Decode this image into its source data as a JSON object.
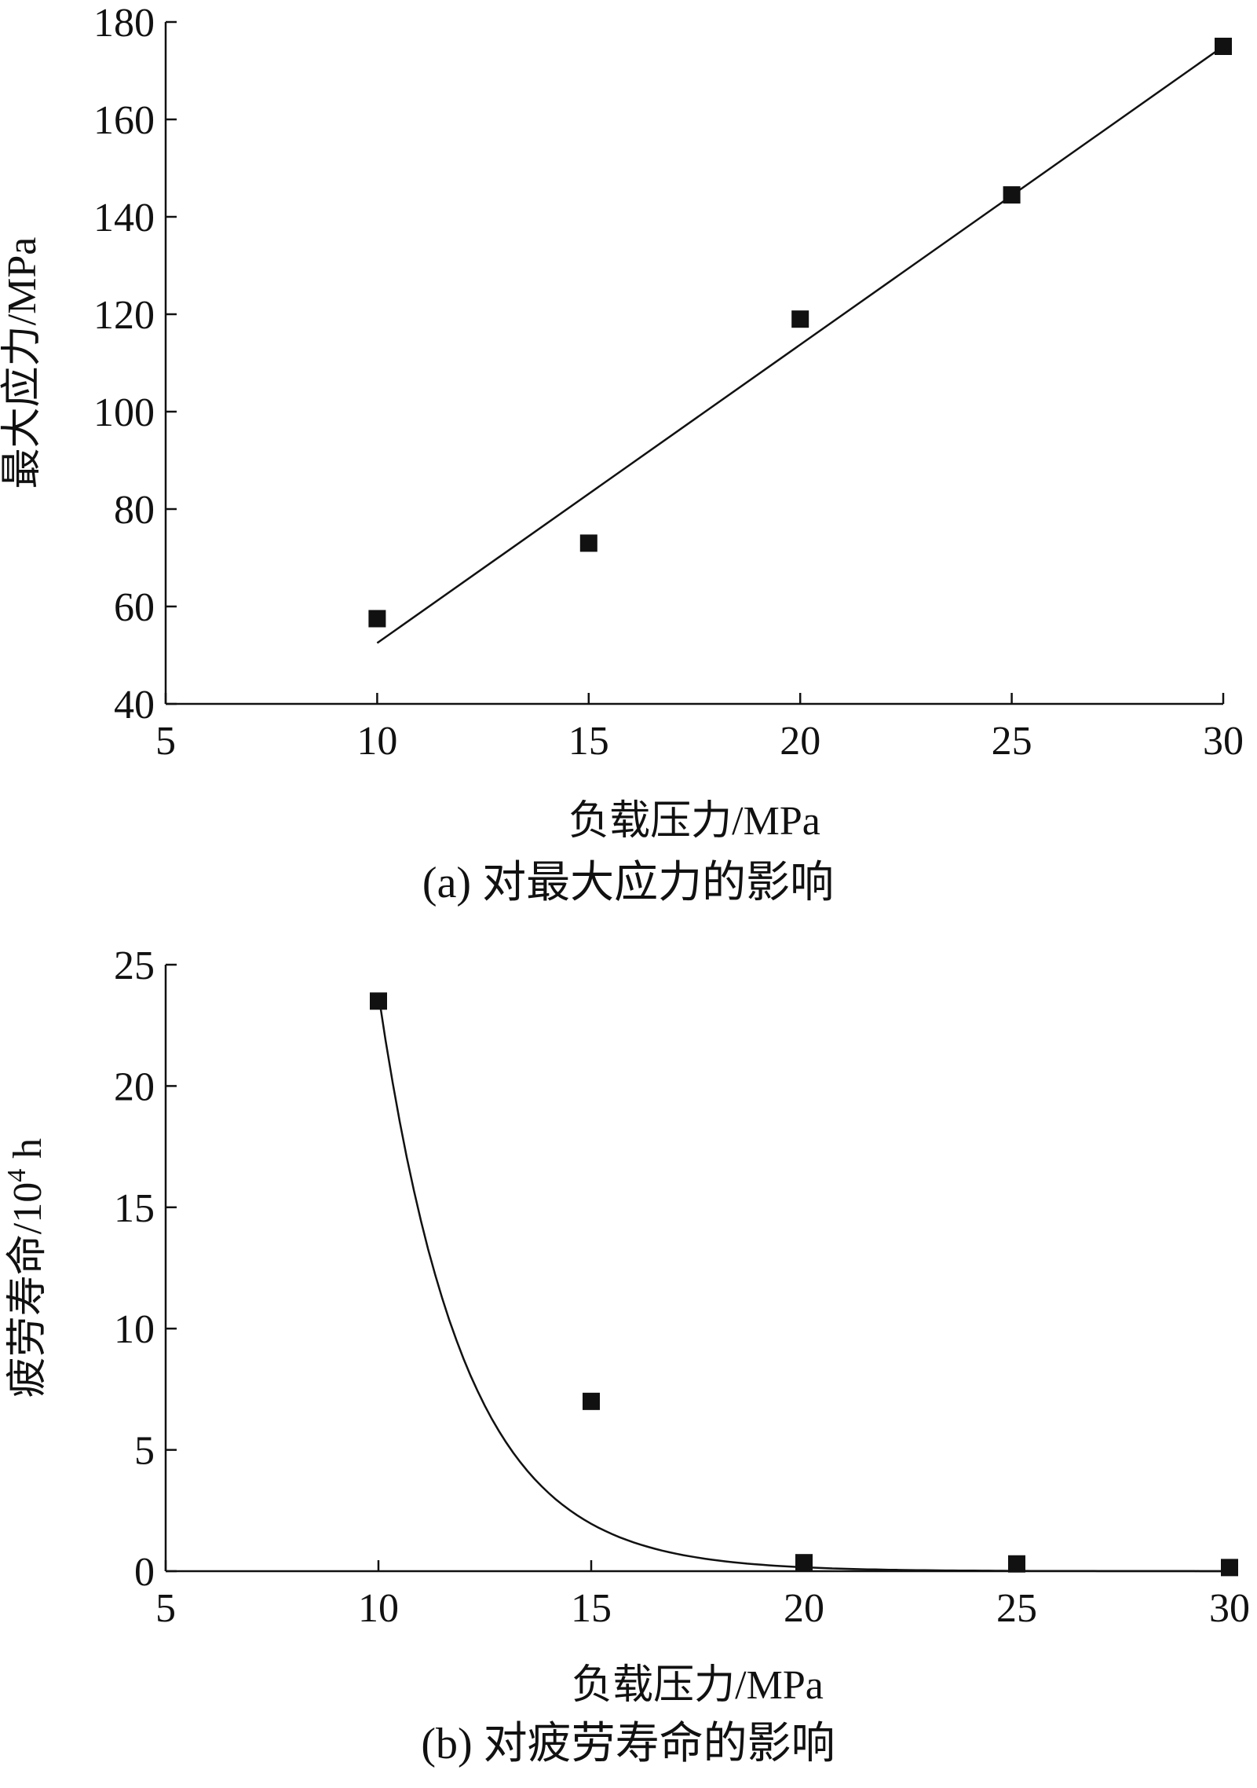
{
  "chart_data": [
    {
      "type": "scatter",
      "caption": "(a) 对最大应力的影响",
      "xlabel": "负载压力/MPa",
      "ylabel": "最大应力/MPa",
      "xlim": [
        5,
        30
      ],
      "ylim": [
        40,
        180
      ],
      "xticks": [
        5,
        10,
        15,
        20,
        25,
        30
      ],
      "yticks": [
        40,
        60,
        80,
        100,
        120,
        140,
        160,
        180
      ],
      "series": [
        {
          "x": [
            10,
            15,
            20,
            25,
            30
          ],
          "y": [
            57.5,
            73.0,
            119.0,
            144.5,
            175.0
          ]
        }
      ],
      "fit": {
        "kind": "linear",
        "x": [
          10,
          30
        ],
        "y": [
          52.5,
          175.0
        ]
      },
      "marker": "square",
      "grid": false,
      "legend": "none"
    },
    {
      "type": "scatter",
      "caption": "(b) 对疲劳寿命的影响",
      "xlabel": "负载压力/MPa",
      "ylabel_main": "疲劳寿命/10",
      "ylabel_sup": "4",
      "ylabel_tail": " h",
      "xlim": [
        5,
        30
      ],
      "ylim": [
        0,
        25
      ],
      "xticks": [
        5,
        10,
        15,
        20,
        25,
        30
      ],
      "yticks": [
        0,
        5,
        10,
        15,
        20,
        25
      ],
      "series": [
        {
          "x": [
            10,
            15,
            20,
            25,
            30
          ],
          "y": [
            23.5,
            7.0,
            0.35,
            0.3,
            0.15
          ]
        }
      ],
      "fit": {
        "kind": "exponential",
        "a": 23.8,
        "b": 0.5,
        "x0": 10,
        "x_end": 30
      },
      "marker": "square",
      "grid": false,
      "legend": "none"
    }
  ]
}
